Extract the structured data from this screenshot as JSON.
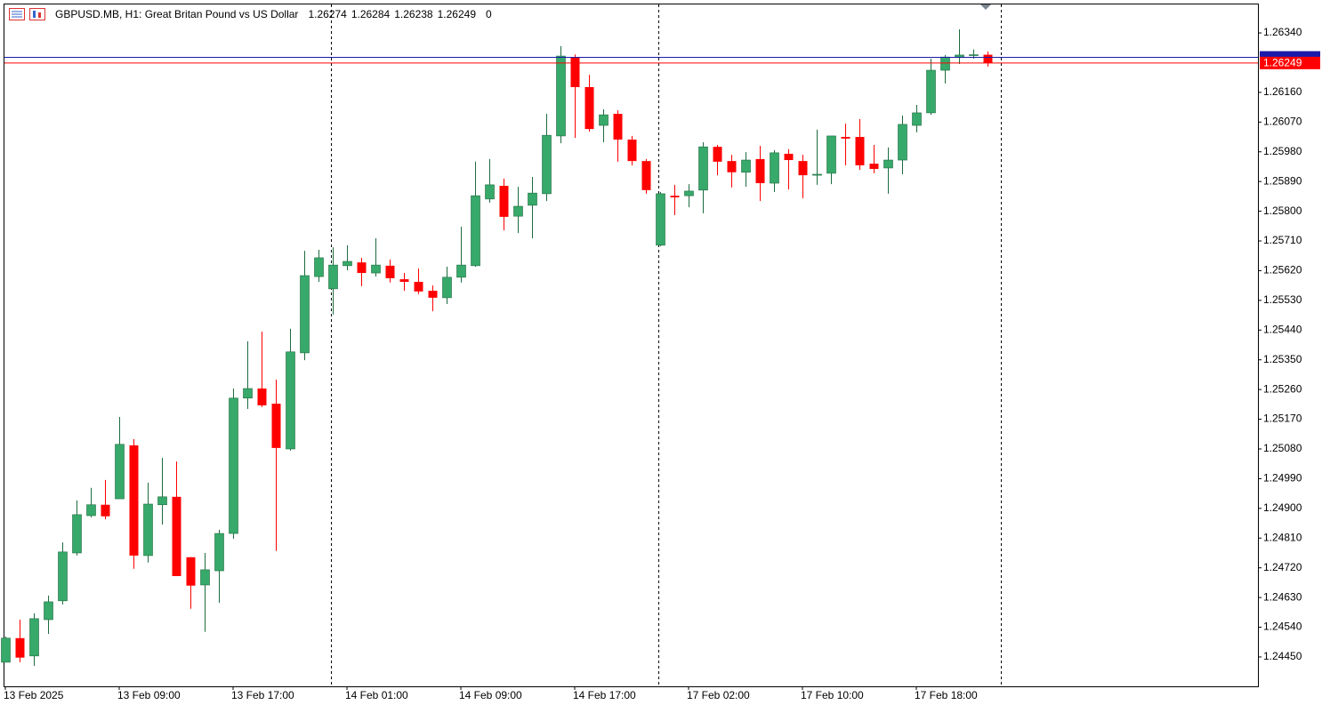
{
  "chart_data": {
    "type": "candlestick",
    "title": "GBPUSD.MB, H1:  Great Britan Pound vs US Dollar",
    "spread": 0,
    "categories": [
      "13 Feb 2025",
      null,
      null,
      null,
      null,
      null,
      null,
      null,
      "13 Feb 09:00",
      null,
      null,
      null,
      null,
      null,
      null,
      null,
      "13 Feb 17:00",
      null,
      null,
      null,
      null,
      null,
      null,
      null,
      "14 Feb 01:00",
      null,
      null,
      null,
      null,
      null,
      null,
      null,
      "14 Feb 09:00",
      null,
      null,
      null,
      null,
      null,
      null,
      null,
      "14 Feb 17:00",
      null,
      null,
      null,
      null,
      null,
      null,
      null,
      "17 Feb 02:00",
      null,
      null,
      null,
      null,
      null,
      null,
      null,
      "17 Feb 10:00",
      null,
      null,
      null,
      null,
      null,
      null,
      null,
      "17 Feb 18:00",
      null,
      null,
      null,
      null,
      null
    ],
    "open": [
      1.24434,
      1.24507,
      1.24453,
      1.24563,
      1.2462,
      1.24765,
      1.24878,
      1.24911,
      1.24929,
      1.25091,
      1.24757,
      1.24911,
      1.24935,
      1.24752,
      1.24668,
      1.24711,
      1.24824,
      1.25234,
      1.25263,
      1.25217,
      1.2508,
      1.25371,
      1.25602,
      1.25565,
      1.25635,
      1.25645,
      1.25613,
      1.25635,
      1.25594,
      1.25586,
      1.25559,
      1.25538,
      1.256,
      1.25635,
      1.25837,
      1.25877,
      1.25785,
      1.25818,
      1.25853,
      1.26028,
      1.26267,
      1.26176,
      1.2606,
      1.26095,
      1.26017,
      1.25952,
      1.25697,
      1.25847,
      1.25847,
      1.25864,
      1.25995,
      1.25952,
      1.25918,
      1.25958,
      1.25885,
      1.25974,
      1.25952,
      1.25909,
      1.25915,
      1.26025,
      1.26025,
      1.25944,
      1.25931,
      1.25955,
      1.2606,
      1.26098,
      1.26227,
      1.26267,
      1.26273,
      1.26274
    ],
    "high": [
      1.24512,
      1.24563,
      1.24582,
      1.24636,
      1.24797,
      1.24924,
      1.24962,
      1.24986,
      1.25177,
      1.2511,
      1.24978,
      1.25053,
      1.25042,
      1.24752,
      1.24765,
      1.24835,
      1.25263,
      1.25406,
      1.25435,
      1.2529,
      1.25444,
      1.2568,
      1.25683,
      1.25691,
      1.25697,
      1.25659,
      1.25718,
      1.25654,
      1.25613,
      1.25627,
      1.25575,
      1.25632,
      1.25753,
      1.2595,
      1.25958,
      1.25899,
      1.25874,
      1.25904,
      1.26095,
      1.263,
      1.26275,
      1.26213,
      1.26109,
      1.26106,
      1.26028,
      1.25958,
      1.25858,
      1.2588,
      1.25882,
      1.26009,
      1.26001,
      1.25971,
      1.25979,
      1.25998,
      1.25985,
      1.25988,
      1.25971,
      1.26047,
      1.26028,
      1.26065,
      1.26079,
      1.26001,
      1.25993,
      1.2609,
      1.26122,
      1.26262,
      1.26273,
      1.26351,
      1.2629,
      1.26284
    ],
    "low": [
      1.24434,
      1.24434,
      1.24423,
      1.2452,
      1.24609,
      1.24757,
      1.24873,
      1.24867,
      1.24929,
      1.24717,
      1.24736,
      1.24851,
      1.24695,
      1.24596,
      1.24526,
      1.24614,
      1.24808,
      1.25201,
      1.25207,
      1.24771,
      1.25075,
      1.25349,
      1.25586,
      1.25487,
      1.25621,
      1.25573,
      1.25602,
      1.25584,
      1.25559,
      1.25549,
      1.25497,
      1.25519,
      1.25584,
      1.25632,
      1.25826,
      1.25742,
      1.25734,
      1.25718,
      1.25831,
      1.26006,
      1.26022,
      1.26041,
      1.26009,
      1.2595,
      1.25939,
      1.25853,
      1.25694,
      1.25788,
      1.25812,
      1.25794,
      1.25909,
      1.25872,
      1.25874,
      1.25831,
      1.25858,
      1.25866,
      1.25839,
      1.2588,
      1.25882,
      1.25939,
      1.25925,
      1.25915,
      1.25853,
      1.25912,
      1.26039,
      1.26092,
      1.26187,
      1.26246,
      1.26262,
      1.26238
    ],
    "close": [
      1.24507,
      1.24448,
      1.24566,
      1.24617,
      1.24768,
      1.24881,
      1.24911,
      1.24876,
      1.25094,
      1.24757,
      1.24913,
      1.24935,
      1.24695,
      1.24666,
      1.24714,
      1.24824,
      1.25234,
      1.25263,
      1.25212,
      1.25083,
      1.25374,
      1.25605,
      1.25659,
      1.25637,
      1.25648,
      1.25613,
      1.25637,
      1.25597,
      1.25586,
      1.25557,
      1.25538,
      1.256,
      1.25637,
      1.25847,
      1.2588,
      1.25783,
      1.25815,
      1.25855,
      1.2603,
      1.2627,
      1.26176,
      1.26049,
      1.26092,
      1.26017,
      1.25952,
      1.25864,
      1.25853,
      1.25842,
      1.25861,
      1.25995,
      1.2595,
      1.25918,
      1.25955,
      1.25885,
      1.25977,
      1.25955,
      1.25909,
      1.25912,
      1.26028,
      1.2602,
      1.25939,
      1.25928,
      1.25955,
      1.26063,
      1.26098,
      1.26227,
      1.26267,
      1.26273,
      1.26274,
      1.26249
    ],
    "up_color": "#37a96a",
    "down_color": "#ff0000",
    "ask_line": 1.26266,
    "ask_color": "#1a1aaa",
    "ylim": [
      1.24361,
      1.26429
    ],
    "yticks": [
      {
        "value": 1.2634,
        "label": "1.26340"
      },
      {
        "value": 1.2616,
        "label": "1.26160"
      },
      {
        "value": 1.2607,
        "label": "1.26070"
      },
      {
        "value": 1.2598,
        "label": "1.25980"
      },
      {
        "value": 1.2589,
        "label": "1.25890"
      },
      {
        "value": 1.258,
        "label": "1.25800"
      },
      {
        "value": 1.2571,
        "label": "1.25710"
      },
      {
        "value": 1.2562,
        "label": "1.25620"
      },
      {
        "value": 1.2553,
        "label": "1.25530"
      },
      {
        "value": 1.2544,
        "label": "1.25440"
      },
      {
        "value": 1.2535,
        "label": "1.25350"
      },
      {
        "value": 1.2526,
        "label": "1.25260"
      },
      {
        "value": 1.2517,
        "label": "1.25170"
      },
      {
        "value": 1.2508,
        "label": "1.25080"
      },
      {
        "value": 1.2499,
        "label": "1.24990"
      },
      {
        "value": 1.249,
        "label": "1.24900"
      },
      {
        "value": 1.2481,
        "label": "1.24810"
      },
      {
        "value": 1.2472,
        "label": "1.24720"
      },
      {
        "value": 1.2463,
        "label": "1.24630"
      },
      {
        "value": 1.2454,
        "label": "1.24540"
      },
      {
        "value": 1.2445,
        "label": "1.24450"
      }
    ]
  }
}
